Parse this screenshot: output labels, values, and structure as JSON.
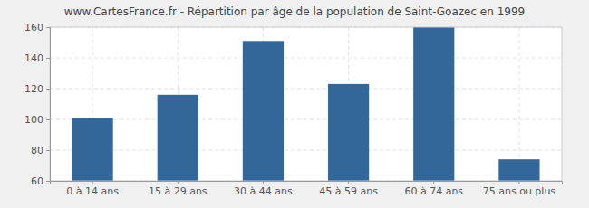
{
  "chart_data": {
    "type": "bar",
    "title": "www.CartesFrance.fr - Répartition par âge de la population de Saint-Goazec en 1999",
    "categories": [
      "0 à 14 ans",
      "15 à 29 ans",
      "30 à 44 ans",
      "45 à 59 ans",
      "60 à 74 ans",
      "75 ans ou plus"
    ],
    "values": [
      101,
      116,
      151,
      123,
      160,
      74
    ],
    "color": "#336699",
    "ylim": [
      60,
      160
    ],
    "yticks": [
      60,
      80,
      100,
      120,
      140,
      160
    ],
    "grid": true
  }
}
